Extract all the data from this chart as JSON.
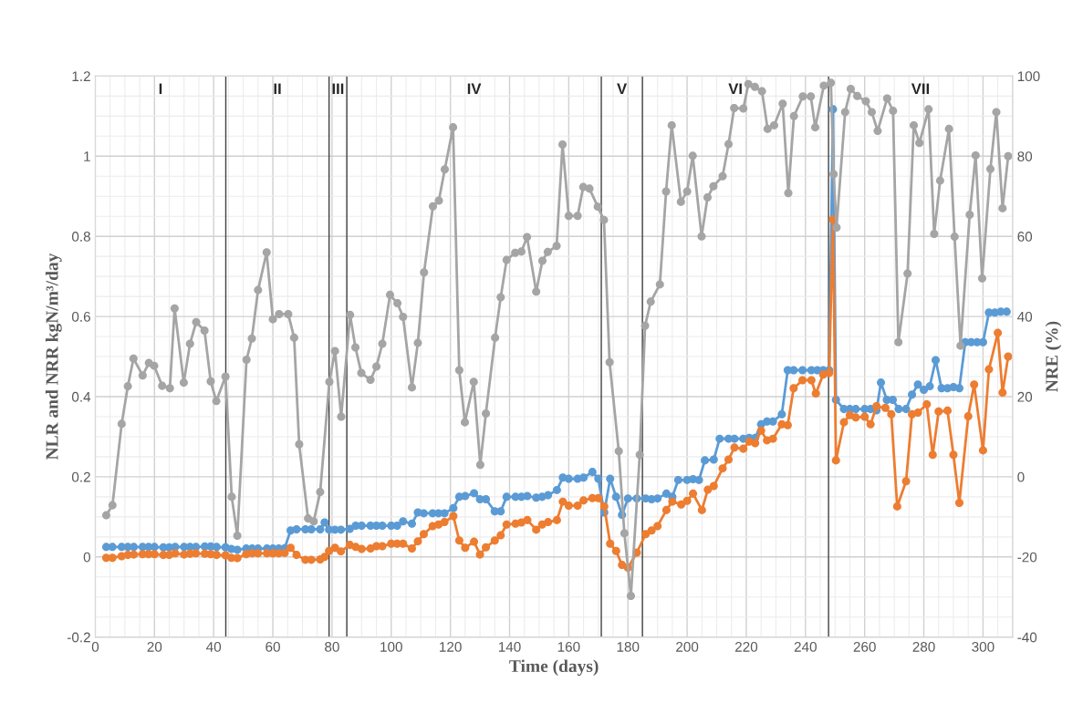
{
  "chart_data": {
    "type": "line",
    "xlabel": "Time (days)",
    "ylabel": "NLR and NRR kgN/m³/day",
    "y2label": "NRE (%)",
    "xlim": [
      0,
      310
    ],
    "xticks": [
      0,
      20,
      40,
      60,
      80,
      100,
      120,
      140,
      160,
      180,
      200,
      220,
      240,
      260,
      280,
      300
    ],
    "ylim": [
      -0.2,
      1.2
    ],
    "yticks": [
      -0.2,
      0,
      0.2,
      0.4,
      0.6,
      0.8,
      1,
      1.2
    ],
    "y2lim": [
      -40,
      100
    ],
    "y2ticks": [
      -40,
      -20,
      0,
      20,
      40,
      60,
      80,
      100
    ],
    "grid": true,
    "marker": "circle",
    "line_style": "solid",
    "series": [
      {
        "color": "#a5a5a5",
        "axis": "y2",
        "x": [
          3.7,
          5.8,
          8.9,
          11.0,
          12.9,
          16.0,
          18.1,
          19.9,
          22.6,
          25.2,
          26.8,
          29.9,
          32.0,
          34.1,
          36.9,
          39.0,
          40.9,
          44.0,
          46.1,
          48.0,
          51.1,
          52.9,
          55.0,
          57.9,
          60.0,
          62.1,
          65.2,
          67.2,
          68.9,
          71.9,
          73.8,
          76.0,
          79.1,
          81.0,
          83.1,
          86.1,
          87.9,
          89.9,
          93.0,
          95.0,
          97.0,
          99.6,
          102.1,
          104.0,
          107.0,
          109.0,
          111.1,
          114.1,
          116.1,
          118.1,
          120.9,
          123.0,
          124.9,
          127.9,
          130.1,
          132.0,
          135.1,
          137.0,
          139.0,
          141.9,
          144.0,
          145.9,
          149.0,
          151.1,
          152.9,
          155.9,
          157.9,
          160.0,
          163.0,
          164.9,
          167.0,
          169.8,
          171.9,
          173.8,
          176.9,
          178.8,
          181.0,
          184.0,
          185.8,
          187.7,
          190.8,
          192.9,
          194.8,
          197.9,
          200.0,
          201.9,
          204.9,
          206.9,
          208.9,
          212.0,
          214.0,
          215.9,
          219.0,
          220.7,
          222.9,
          225.3,
          227.2,
          229.4,
          232.3,
          234.2,
          236.1,
          239.1,
          241.8,
          243.3,
          246.2,
          248.6,
          249.5,
          250.5,
          253.4,
          255.3,
          257.5,
          260.4,
          262.4,
          264.4,
          267.6,
          269.6,
          271.4,
          274.5,
          276.6,
          278.5,
          281.6,
          283.5,
          285.5,
          288.5,
          290.4,
          292.4,
          295.5,
          297.5,
          299.7,
          302.5,
          304.5,
          306.6,
          308.5
        ],
        "values": [
          -9.6,
          -7.1,
          13.2,
          22.6,
          29.5,
          25.3,
          28.4,
          27.7,
          22.7,
          22.1,
          42.0,
          23.5,
          33.2,
          38.6,
          36.5,
          23.8,
          18.9,
          25.0,
          -5.0,
          -14.7,
          29.2,
          34.5,
          46.6,
          56.0,
          39.3,
          40.6,
          40.6,
          34.7,
          8.1,
          -10.4,
          -11.1,
          -3.8,
          23.7,
          31.4,
          15.0,
          40.4,
          32.3,
          25.9,
          24.2,
          27.5,
          33.2,
          45.4,
          43.3,
          39.9,
          22.3,
          33.4,
          51.0,
          67.5,
          68.9,
          76.7,
          87.2,
          26.6,
          13.6,
          23.7,
          3.0,
          15.8,
          34.7,
          44.8,
          54.1,
          55.9,
          56.2,
          59.8,
          46.2,
          53.9,
          56.1,
          57.6,
          82.9,
          65.1,
          65.1,
          72.3,
          71.9,
          67.4,
          64.1,
          28.6,
          6.4,
          -14.1,
          -29.7,
          5.5,
          37.7,
          43.7,
          48.0,
          71.2,
          87.7,
          68.6,
          71.2,
          80.1,
          60.0,
          69.7,
          72.5,
          75.0,
          83.0,
          92.0,
          91.9,
          98.0,
          97.3,
          96.2,
          86.8,
          87.7,
          93.1,
          70.8,
          90.0,
          94.9,
          94.9,
          87.2,
          97.6,
          98.3,
          75.5,
          62.2,
          91.0,
          96.8,
          95.0,
          93.7,
          91.0,
          86.3,
          94.4,
          91.3,
          33.6,
          50.7,
          87.7,
          83.3,
          91.7,
          60.6,
          73.9,
          86.8,
          59.9,
          32.7,
          65.4,
          80.2,
          49.5,
          76.8,
          91.0,
          67.0,
          80.0
        ]
      },
      {
        "color": "#5b9bd5",
        "x": [
          3.7,
          5.8,
          8.9,
          11,
          13,
          16,
          18,
          20,
          23,
          25,
          27,
          30,
          32,
          34,
          37,
          39,
          41,
          44,
          46,
          48,
          51,
          53,
          55,
          58,
          60,
          62,
          64,
          66,
          68,
          71,
          73,
          76,
          77.5,
          79,
          81,
          83,
          86,
          88,
          90,
          93,
          95,
          97,
          100,
          102,
          104,
          107,
          109,
          111,
          114,
          116,
          118,
          121,
          123,
          125,
          128,
          130,
          132,
          135,
          137,
          139,
          142,
          144,
          146,
          149,
          151,
          153,
          156,
          158,
          160,
          163,
          165,
          168,
          170,
          172,
          174,
          176,
          178,
          180,
          183,
          186,
          188,
          190,
          193,
          195,
          197,
          200,
          202,
          204,
          206,
          209,
          211,
          214,
          216,
          219,
          221,
          223,
          225,
          227,
          229,
          232,
          234,
          236,
          239,
          242,
          244,
          246,
          248,
          249.3,
          250.3,
          253,
          255,
          257,
          260,
          262,
          264,
          265.5,
          267.5,
          269.5,
          271.5,
          274,
          276,
          278,
          280,
          282,
          284,
          286,
          288,
          290,
          292,
          294,
          296,
          298,
          300,
          302,
          304,
          306,
          308
        ],
        "values": [
          0.025,
          0.025,
          0.025,
          0.025,
          0.025,
          0.025,
          0.025,
          0.025,
          0.024,
          0.024,
          0.025,
          0.025,
          0.025,
          0.025,
          0.026,
          0.026,
          0.025,
          0.024,
          0.02,
          0.018,
          0.021,
          0.021,
          0.021,
          0.021,
          0.021,
          0.021,
          0.022,
          0.066,
          0.069,
          0.069,
          0.069,
          0.069,
          0.086,
          0.068,
          0.068,
          0.068,
          0.07,
          0.078,
          0.078,
          0.078,
          0.078,
          0.078,
          0.078,
          0.078,
          0.089,
          0.083,
          0.111,
          0.109,
          0.109,
          0.109,
          0.109,
          0.122,
          0.15,
          0.152,
          0.159,
          0.144,
          0.144,
          0.114,
          0.114,
          0.15,
          0.15,
          0.15,
          0.152,
          0.148,
          0.15,
          0.154,
          0.167,
          0.198,
          0.195,
          0.195,
          0.198,
          0.212,
          0.195,
          0.111,
          0.195,
          0.15,
          0.105,
          0.146,
          0.146,
          0.146,
          0.144,
          0.146,
          0.158,
          0.15,
          0.192,
          0.192,
          0.194,
          0.192,
          0.241,
          0.243,
          0.295,
          0.295,
          0.295,
          0.295,
          0.297,
          0.297,
          0.331,
          0.338,
          0.338,
          0.356,
          0.466,
          0.466,
          0.466,
          0.466,
          0.466,
          0.466,
          0.466,
          1.117,
          0.392,
          0.369,
          0.369,
          0.369,
          0.369,
          0.369,
          0.366,
          0.435,
          0.392,
          0.392,
          0.369,
          0.369,
          0.405,
          0.43,
          0.417,
          0.426,
          0.491,
          0.421,
          0.421,
          0.424,
          0.421,
          0.536,
          0.536,
          0.536,
          0.536,
          0.61,
          0.61,
          0.612,
          0.612
        ]
      },
      {
        "color": "#ed7d31",
        "x": [
          3.7,
          5.8,
          8.9,
          11,
          13,
          16,
          18,
          20,
          23,
          25,
          27,
          30,
          32,
          34,
          37,
          39,
          41,
          44,
          46,
          48,
          51,
          53,
          55,
          58,
          60,
          62,
          64,
          66,
          68,
          71,
          73,
          76,
          77.5,
          79,
          81,
          83,
          86,
          88,
          90,
          93,
          95,
          97,
          100,
          102,
          104,
          107,
          109,
          111,
          114,
          116,
          118,
          121,
          123,
          125,
          128,
          130,
          132,
          135,
          137,
          139,
          142,
          144,
          146,
          149,
          151,
          153,
          156,
          158,
          160,
          163,
          165,
          168,
          170,
          172,
          174,
          176,
          178,
          180,
          183,
          186,
          188,
          190,
          193,
          195,
          198,
          200,
          202,
          205,
          207,
          209,
          212,
          214,
          216,
          219,
          221,
          223,
          225,
          227,
          229,
          232,
          234,
          236,
          239,
          242,
          243.5,
          246,
          248,
          249.3,
          250.3,
          253,
          255,
          257,
          260,
          262,
          264,
          267,
          269,
          271,
          274,
          276,
          278,
          281,
          283,
          285,
          288,
          290,
          292,
          295,
          297,
          300,
          302,
          305,
          306.6,
          308.5
        ],
        "values": [
          -0.002,
          -0.002,
          0.002,
          0.005,
          0.006,
          0.007,
          0.007,
          0.007,
          0.005,
          0.005,
          0.009,
          0.006,
          0.008,
          0.009,
          0.008,
          0.007,
          0.005,
          0.004,
          -0.002,
          -0.003,
          0.007,
          0.009,
          0.009,
          0.009,
          0.009,
          0.009,
          0.01,
          0.023,
          0.005,
          -0.007,
          -0.007,
          -0.006,
          0,
          0.015,
          0.023,
          0.014,
          0.03,
          0.025,
          0.02,
          0.021,
          0.027,
          0.027,
          0.033,
          0.033,
          0.033,
          0.021,
          0.039,
          0.057,
          0.077,
          0.081,
          0.087,
          0.102,
          0.041,
          0.023,
          0.038,
          0.006,
          0.024,
          0.041,
          0.054,
          0.081,
          0.083,
          0.086,
          0.092,
          0.068,
          0.081,
          0.087,
          0.092,
          0.138,
          0.128,
          0.128,
          0.141,
          0.147,
          0.147,
          0.126,
          0.033,
          0.015,
          -0.02,
          -0.027,
          0.011,
          0.057,
          0.066,
          0.077,
          0.117,
          0.138,
          0.131,
          0.14,
          0.158,
          0.117,
          0.168,
          0.177,
          0.221,
          0.243,
          0.273,
          0.27,
          0.288,
          0.284,
          0.315,
          0.291,
          0.295,
          0.331,
          0.329,
          0.421,
          0.441,
          0.441,
          0.408,
          0.455,
          0.459,
          0.842,
          0.241,
          0.336,
          0.354,
          0.348,
          0.35,
          0.331,
          0.376,
          0.372,
          0.356,
          0.126,
          0.189,
          0.356,
          0.36,
          0.381,
          0.255,
          0.363,
          0.365,
          0.255,
          0.135,
          0.351,
          0.43,
          0.266,
          0.468,
          0.559,
          0.41,
          0.5
        ]
      }
    ],
    "ref_lines": [
      {
        "axis": "x",
        "value": 44.1,
        "color": "#404040"
      },
      {
        "axis": "x",
        "value": 79.0,
        "color": "#404040"
      },
      {
        "axis": "x",
        "value": 85.0,
        "color": "#404040"
      },
      {
        "axis": "x",
        "value": 171.0,
        "color": "#404040"
      },
      {
        "axis": "x",
        "value": 184.9,
        "color": "#404040"
      },
      {
        "axis": "x",
        "value": 247.8,
        "color": "#404040"
      }
    ],
    "annotations": [
      "I",
      "II",
      "III",
      "IV",
      "V",
      "VI",
      "VII"
    ]
  }
}
